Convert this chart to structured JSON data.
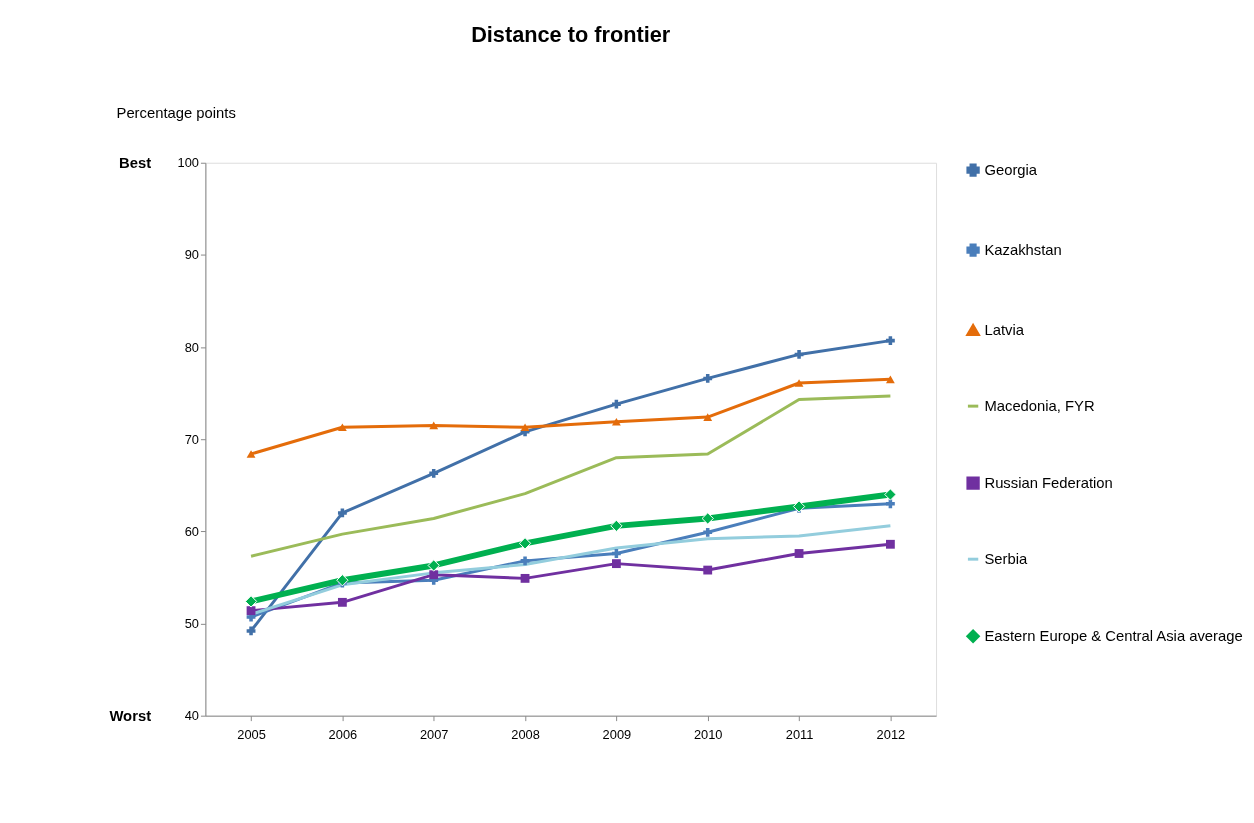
{
  "chart_data": {
    "type": "line",
    "title": "Distance to frontier",
    "ylabel": "Percentage points",
    "categories": [
      "2005",
      "2006",
      "2007",
      "2008",
      "2009",
      "2010",
      "2011",
      "2012"
    ],
    "series": [
      {
        "name": "Georgia",
        "color": "#4170a8",
        "marker": "cross",
        "values": [
          49.2,
          62.0,
          66.3,
          70.8,
          73.8,
          76.6,
          79.2,
          80.7
        ]
      },
      {
        "name": "Kazakhstan",
        "color": "#4a7ebb",
        "marker": "cross",
        "values": [
          50.7,
          54.4,
          54.7,
          56.8,
          57.6,
          59.9,
          62.5,
          63.0
        ]
      },
      {
        "name": "Latvia",
        "color": "#e46c0a",
        "marker": "triangle",
        "values": [
          68.4,
          71.3,
          71.5,
          71.3,
          71.9,
          72.4,
          76.1,
          76.5
        ]
      },
      {
        "name": "Macedonia, FYR",
        "color": "#9bbb59",
        "marker": "none",
        "values": [
          57.3,
          59.7,
          61.4,
          64.1,
          68.0,
          68.4,
          74.3,
          74.7
        ]
      },
      {
        "name": "Russian Federation",
        "color": "#7030a0",
        "marker": "square",
        "values": [
          51.4,
          52.3,
          55.3,
          54.9,
          56.5,
          55.8,
          57.6,
          58.6
        ]
      },
      {
        "name": "Serbia",
        "color": "#93cddd",
        "marker": "none",
        "values": [
          51.0,
          54.2,
          55.5,
          56.4,
          58.2,
          59.2,
          59.5,
          60.6
        ]
      },
      {
        "name": "Eastern Europe & Central Asia average",
        "color": "#00b050",
        "marker": "diamond",
        "values": [
          52.4,
          54.7,
          56.3,
          58.7,
          60.6,
          61.4,
          62.7,
          64.0
        ]
      }
    ],
    "ylim": [
      40,
      100
    ],
    "yticks": [
      40,
      50,
      60,
      70,
      80,
      90,
      100
    ],
    "annotations": [
      "Best",
      "Worst"
    ],
    "grid": false,
    "legend": "right"
  }
}
